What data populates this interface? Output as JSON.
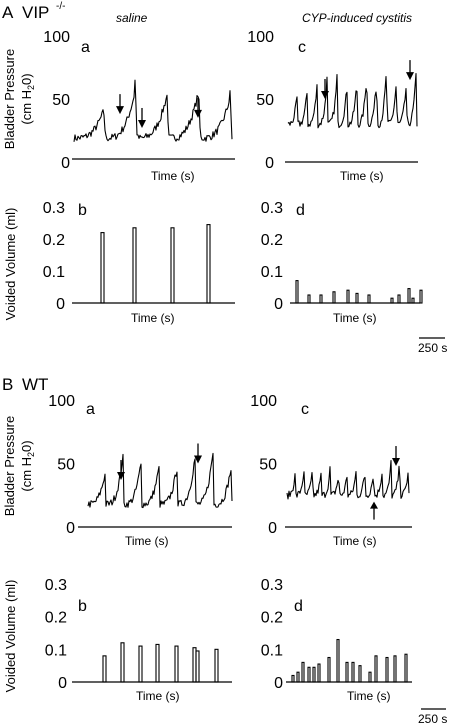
{
  "figure": {
    "section_a_letter": "A",
    "section_a_genotype": "VIP",
    "section_a_genotype_sup": "-/-",
    "section_b_letter": "B",
    "section_b_genotype": "WT",
    "col_left_title": "saline",
    "col_right_title": "CYP-induced cystitis",
    "ylabel_pressure_main": "Bladder Pressure",
    "ylabel_pressure_unit_open": "(cm H",
    "ylabel_pressure_unit_sub": "2",
    "ylabel_pressure_unit_close": "0)",
    "ylabel_volume": "Voided Volume (ml)",
    "xlabel": "Time (s)",
    "scale_bar_label": "250 s"
  },
  "chart_data": [
    {
      "id": "A-a",
      "type": "line",
      "panel_label": "a",
      "condition": "saline",
      "genotype": "VIP-/-",
      "ylabel": "Bladder Pressure (cm H2O)",
      "xlabel": "Time (s)",
      "yticks": [
        "100",
        "50",
        "0"
      ],
      "ylim": [
        0,
        100
      ],
      "trace_baseline_cmH2O": 19,
      "peak_cmH2O": [
        45,
        65,
        60,
        63,
        58
      ],
      "arrow_markers_at_cmH2O": [
        38,
        27,
        35
      ]
    },
    {
      "id": "A-c",
      "type": "line",
      "panel_label": "c",
      "condition": "CYP-induced cystitis",
      "genotype": "VIP-/-",
      "ylabel": "Bladder Pressure (cm H2O)",
      "xlabel": "Time (s)",
      "yticks": [
        "100",
        "50",
        "0"
      ],
      "ylim": [
        0,
        100
      ],
      "trace_baseline_cmH2O": 30,
      "peak_cmH2O": [
        58,
        62,
        68,
        70,
        73,
        65,
        70,
        78,
        73,
        84,
        73,
        70,
        83
      ],
      "arrow_markers_at_cmH2O": [
        50,
        65
      ]
    },
    {
      "id": "A-b",
      "type": "bar",
      "panel_label": "b",
      "condition": "saline",
      "genotype": "VIP-/-",
      "ylabel": "Voided Volume (ml)",
      "xlabel": "Time (s)",
      "yticks": [
        "0.3",
        "0.2",
        "0.1",
        "0"
      ],
      "ylim": [
        0,
        0.3
      ],
      "values": [
        0.22,
        0.235,
        0.235,
        0.245
      ]
    },
    {
      "id": "A-d",
      "type": "bar",
      "panel_label": "d",
      "condition": "CYP-induced cystitis",
      "genotype": "VIP-/-",
      "ylabel": "Voided Volume (ml)",
      "xlabel": "Time (s)",
      "yticks": [
        "0.3",
        "0.2",
        "0.1",
        "0"
      ],
      "ylim": [
        0,
        0.3
      ],
      "values": [
        0.07,
        0.025,
        0.025,
        0.035,
        0.04,
        0.03,
        0.025,
        0.015,
        0.025,
        0.045,
        0.015,
        0.04
      ]
    },
    {
      "id": "B-a",
      "type": "line",
      "panel_label": "a",
      "condition": "saline",
      "genotype": "WT",
      "ylabel": "Bladder Pressure (cm H2O)",
      "xlabel": "Time (s)",
      "yticks": [
        "100",
        "50",
        "0"
      ],
      "ylim": [
        0,
        100
      ],
      "trace_baseline_cmH2O": 18,
      "peak_cmH2O": [
        47,
        64,
        57,
        53,
        53,
        63,
        68,
        52
      ],
      "arrow_markers_at_cmH2O": [
        37,
        50
      ]
    },
    {
      "id": "B-c",
      "type": "line",
      "panel_label": "c",
      "condition": "CYP-induced cystitis",
      "genotype": "WT",
      "ylabel": "Bladder Pressure (cm H2O)",
      "xlabel": "Time (s)",
      "yticks": [
        "100",
        "50",
        "0"
      ],
      "ylim": [
        0,
        100
      ],
      "trace_baseline_cmH2O": 25,
      "peak_cmH2O": [
        45,
        48,
        48,
        46,
        47,
        45,
        47,
        48,
        46,
        48,
        50,
        53,
        57,
        50
      ],
      "arrow_markers_at_cmH2O": [
        20,
        48
      ]
    },
    {
      "id": "B-b",
      "type": "bar",
      "panel_label": "b",
      "condition": "saline",
      "genotype": "WT",
      "ylabel": "Voided Volume (ml)",
      "xlabel": "Time (s)",
      "yticks": [
        "0.3",
        "0.2",
        "0.1",
        "0"
      ],
      "ylim": [
        0,
        0.3
      ],
      "values": [
        0.08,
        0.12,
        0.11,
        0.115,
        0.11,
        0.105,
        0.095,
        0.1
      ]
    },
    {
      "id": "B-d",
      "type": "bar",
      "panel_label": "d",
      "condition": "CYP-induced cystitis",
      "genotype": "WT",
      "ylabel": "Voided Volume (ml)",
      "xlabel": "Time (s)",
      "yticks": [
        "0.3",
        "0.2",
        "0.1",
        "0"
      ],
      "ylim": [
        0,
        0.3
      ],
      "values": [
        0.02,
        0.03,
        0.06,
        0.045,
        0.045,
        0.055,
        0.075,
        0.13,
        0.06,
        0.06,
        0.05,
        0.03,
        0.08,
        0.075,
        0.08,
        0.085
      ]
    }
  ]
}
